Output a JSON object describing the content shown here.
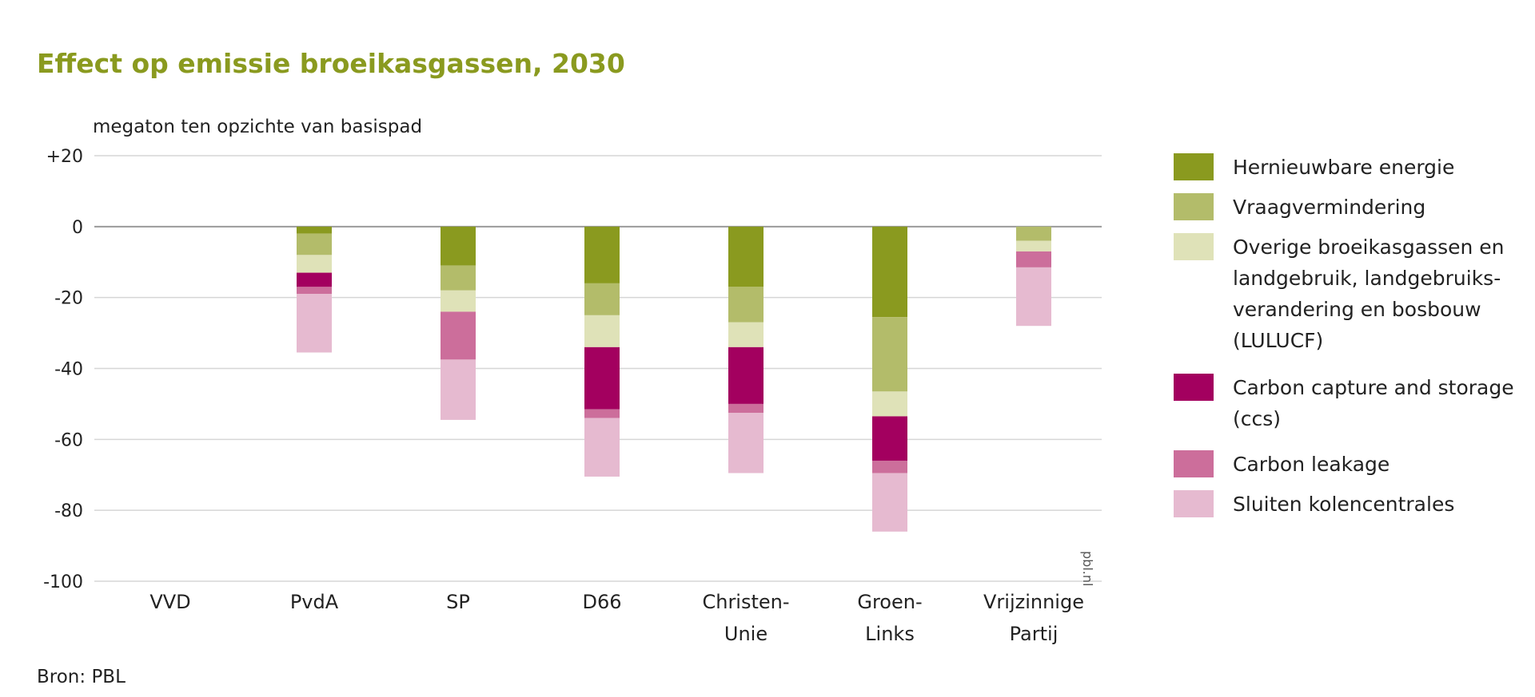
{
  "chart_data": {
    "type": "bar",
    "stacked": true,
    "title": "Effect op emissie broeikasgassen, 2030",
    "ylabel": "megaton ten opzichte van basispad",
    "xlabel": "",
    "ylim": [
      -100,
      20
    ],
    "yticks": [
      "+20",
      "0",
      "-20",
      "-40",
      "-60",
      "-80",
      "-100"
    ],
    "ytick_values": [
      20,
      0,
      -20,
      -40,
      -60,
      -80,
      -100
    ],
    "grid": true,
    "legend_position": "right",
    "categories": [
      "VVD",
      "PvdA",
      "SP",
      "D66",
      "Christen-Unie",
      "Groen-Links",
      "Vrijzinnige Partij"
    ],
    "category_labels": [
      [
        "VVD"
      ],
      [
        "PvdA"
      ],
      [
        "SP"
      ],
      [
        "D66"
      ],
      [
        "Christen-",
        "Unie"
      ],
      [
        "Groen-",
        "Links"
      ],
      [
        "Vrijzinnige",
        "Partij"
      ]
    ],
    "series": [
      {
        "name": "Hernieuwbare energie",
        "color": "#8a9a1f",
        "values": [
          0,
          -2,
          -11,
          -16,
          -17,
          -25.5,
          0
        ]
      },
      {
        "name": "Vraagvermindering",
        "color": "#b3bc6a",
        "values": [
          0,
          -6,
          -7,
          -9,
          -10,
          -21,
          -4
        ]
      },
      {
        "name": "Overige broeikasgassen en landgebruik, landgebruiks-verandering en bosbouw (LULUCF)",
        "color": "#dfe2b8",
        "values": [
          0,
          -5,
          -6,
          -9,
          -7,
          -7,
          -3
        ]
      },
      {
        "name": "Carbon capture and storage (ccs)",
        "color": "#a3005f",
        "values": [
          0,
          -4,
          0,
          -17.5,
          -16,
          -12.5,
          0
        ]
      },
      {
        "name": "Carbon leakage",
        "color": "#cc6e9b",
        "values": [
          0,
          -2,
          -13.5,
          -2.5,
          -2.5,
          -3.5,
          -4.5
        ]
      },
      {
        "name": "Sluiten kolencentrales",
        "color": "#e6bad0",
        "values": [
          0,
          -16.5,
          -17,
          -16.5,
          -17,
          -16.5,
          -16.5
        ]
      }
    ],
    "legend_labels": [
      "Hernieuwbare energie",
      "Vraagvermindering",
      "Overige broeikasgassen en\nlandgebruik, landgebruiks-\nverandering en bosbouw\n (LULUCF)",
      "Carbon capture and storage\n(ccs)",
      "Carbon leakage",
      "Sluiten kolencentrales"
    ]
  },
  "source": "Bron: PBL",
  "credit": "pbl.nl"
}
